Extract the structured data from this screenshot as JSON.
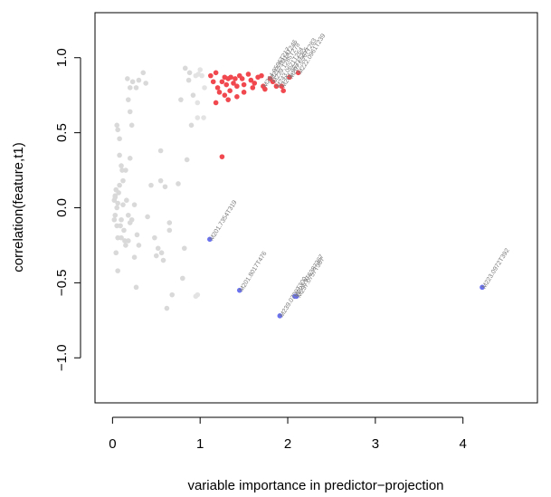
{
  "chart_data": {
    "type": "scatter",
    "title": "",
    "xlabel": "variable importance in predictor−projection",
    "ylabel": "correlation(feature,t1)",
    "xlim": [
      -0.2,
      4.85
    ],
    "ylim": [
      -1.3,
      1.3
    ],
    "xticks": [
      {
        "v": 0,
        "label": "0"
      },
      {
        "v": 1,
        "label": "1"
      },
      {
        "v": 2,
        "label": "2"
      },
      {
        "v": 3,
        "label": "3"
      },
      {
        "v": 4,
        "label": "4"
      }
    ],
    "yticks": [
      {
        "v": -1.0,
        "label": "−1.0"
      },
      {
        "v": -0.5,
        "label": "−0.5"
      },
      {
        "v": 0.0,
        "label": "0.0"
      },
      {
        "v": 0.5,
        "label": "0.5"
      },
      {
        "v": 1.0,
        "label": "1.0"
      }
    ],
    "grid": false,
    "colors": {
      "gray": "#d9d9d9",
      "gray_soft": "#e3e3e3",
      "red": "#f0484e",
      "blue": "#6b72f0",
      "label": "#7a7a7a",
      "axis": "#000000"
    },
    "series": [
      {
        "color_key": "gray",
        "points": [
          [
            0.02,
            0.05
          ],
          [
            0.04,
            0.12
          ],
          [
            0.06,
            0.03
          ],
          [
            0.03,
            -0.05
          ],
          [
            0.08,
            0.15
          ],
          [
            0.05,
            0.0
          ],
          [
            0.1,
            -0.08
          ],
          [
            0.07,
            0.1
          ],
          [
            0.12,
            0.02
          ],
          [
            0.03,
            0.07
          ],
          [
            0.09,
            -0.12
          ],
          [
            0.11,
            0.25
          ],
          [
            0.06,
            -0.2
          ],
          [
            0.15,
            -0.25
          ],
          [
            0.13,
            -0.15
          ],
          [
            0.18,
            -0.05
          ],
          [
            0.2,
            -0.1
          ],
          [
            0.16,
            0.05
          ],
          [
            0.08,
            0.35
          ],
          [
            0.1,
            0.28
          ],
          [
            0.04,
            -0.3
          ],
          [
            0.06,
            -0.42
          ],
          [
            0.14,
            -0.22
          ],
          [
            0.22,
            -0.08
          ],
          [
            0.25,
            0.02
          ],
          [
            0.05,
            0.55
          ],
          [
            0.06,
            0.52
          ],
          [
            0.08,
            0.46
          ],
          [
            0.2,
            0.64
          ],
          [
            0.18,
            0.72
          ],
          [
            0.23,
            0.84
          ],
          [
            0.2,
            0.8
          ],
          [
            0.17,
            0.86
          ],
          [
            0.27,
            0.8
          ],
          [
            0.3,
            0.85
          ],
          [
            0.35,
            0.9
          ],
          [
            0.38,
            0.83
          ],
          [
            0.22,
            0.55
          ],
          [
            0.12,
            0.18
          ],
          [
            0.25,
            -0.33
          ],
          [
            0.28,
            -0.18
          ],
          [
            0.3,
            -0.25
          ],
          [
            0.18,
            -0.22
          ],
          [
            0.2,
            0.33
          ],
          [
            0.1,
            -0.2
          ],
          [
            0.03,
            0.08
          ],
          [
            0.05,
            -0.12
          ],
          [
            0.02,
            -0.08
          ],
          [
            0.27,
            -0.53
          ],
          [
            0.48,
            -0.2
          ],
          [
            0.5,
            -0.32
          ],
          [
            0.52,
            -0.27
          ],
          [
            0.55,
            0.38
          ],
          [
            0.56,
            -0.3
          ],
          [
            0.58,
            -0.35
          ],
          [
            0.6,
            0.14
          ],
          [
            0.65,
            -0.1
          ],
          [
            0.65,
            -0.15
          ],
          [
            0.62,
            -0.67
          ],
          [
            0.68,
            -0.58
          ],
          [
            0.78,
            0.72
          ],
          [
            0.8,
            -0.47
          ],
          [
            0.82,
            -0.27
          ],
          [
            0.83,
            0.93
          ],
          [
            0.87,
            0.85
          ],
          [
            0.88,
            0.9
          ],
          [
            0.85,
            0.32
          ],
          [
            0.75,
            0.16
          ],
          [
            0.9,
            0.55
          ],
          [
            0.92,
            0.75
          ],
          [
            0.55,
            0.18
          ],
          [
            0.4,
            -0.06
          ],
          [
            0.15,
            0.25
          ],
          [
            0.44,
            0.15
          ]
        ]
      },
      {
        "color_key": "gray_soft",
        "points": [
          [
            0.97,
            0.6
          ],
          [
            0.98,
            0.89
          ],
          [
            0.95,
            0.88
          ],
          [
            1.0,
            0.92
          ],
          [
            1.02,
            0.88
          ],
          [
            1.04,
            0.6
          ],
          [
            1.05,
            0.8
          ],
          [
            0.97,
            0.7
          ],
          [
            0.95,
            -0.59
          ],
          [
            0.97,
            -0.58
          ]
        ]
      },
      {
        "color_key": "red",
        "points": [
          [
            1.12,
            0.88
          ],
          [
            1.15,
            0.84
          ],
          [
            1.18,
            0.9
          ],
          [
            1.2,
            0.8
          ],
          [
            1.22,
            0.77
          ],
          [
            1.25,
            0.84
          ],
          [
            1.28,
            0.87
          ],
          [
            1.3,
            0.82
          ],
          [
            1.32,
            0.86
          ],
          [
            1.34,
            0.78
          ],
          [
            1.35,
            0.87
          ],
          [
            1.38,
            0.83
          ],
          [
            1.4,
            0.86
          ],
          [
            1.42,
            0.81
          ],
          [
            1.45,
            0.88
          ],
          [
            1.48,
            0.86
          ],
          [
            1.5,
            0.82
          ],
          [
            1.55,
            0.89
          ],
          [
            1.58,
            0.85
          ],
          [
            1.62,
            0.83
          ],
          [
            1.66,
            0.87
          ],
          [
            1.7,
            0.88
          ],
          [
            1.72,
            0.81
          ],
          [
            1.8,
            0.86
          ],
          [
            1.83,
            0.84
          ],
          [
            1.87,
            0.81
          ],
          [
            1.93,
            0.81
          ],
          [
            2.02,
            0.87
          ],
          [
            2.12,
            0.9
          ],
          [
            1.25,
            0.34
          ],
          [
            1.18,
            0.7
          ],
          [
            1.28,
            0.75
          ],
          [
            1.42,
            0.74
          ],
          [
            1.6,
            0.8
          ],
          [
            1.74,
            0.79
          ],
          [
            1.95,
            0.78
          ],
          [
            1.32,
            0.72
          ],
          [
            1.5,
            0.77
          ]
        ]
      },
      {
        "color_key": "blue",
        "points": [
          [
            1.11,
            -0.21
          ],
          [
            1.45,
            -0.55
          ],
          [
            1.91,
            -0.72
          ],
          [
            2.08,
            -0.59
          ],
          [
            2.1,
            -0.59
          ],
          [
            4.22,
            -0.53
          ]
        ]
      }
    ],
    "annotations": [
      {
        "x": 1.11,
        "y": -0.21,
        "text": "M201.7354T319"
      },
      {
        "x": 1.45,
        "y": -0.55,
        "text": "M201.8017T476"
      },
      {
        "x": 1.91,
        "y": -0.72,
        "text": "M239.0709T300"
      },
      {
        "x": 2.08,
        "y": -0.59,
        "text": "M221.9T6287367"
      },
      {
        "x": 2.11,
        "y": -0.59,
        "text": "M237.0757T387"
      },
      {
        "x": 4.22,
        "y": -0.53,
        "text": "M223.0972T392"
      },
      {
        "x": 2.12,
        "y": 0.9,
        "text": "M222.0961T239"
      },
      {
        "x": 2.02,
        "y": 0.87,
        "text": "M207.6367T283"
      },
      {
        "x": 1.87,
        "y": 0.81,
        "text": "M243.0621T264"
      },
      {
        "x": 1.83,
        "y": 0.84,
        "text": "M239.1285T278"
      },
      {
        "x": 1.8,
        "y": 0.86,
        "text": "M215.0914T246"
      },
      {
        "x": 1.72,
        "y": 0.81,
        "text": "M264.9596T217"
      },
      {
        "x": 1.93,
        "y": 0.81,
        "text": "M201.0637T255"
      }
    ]
  }
}
